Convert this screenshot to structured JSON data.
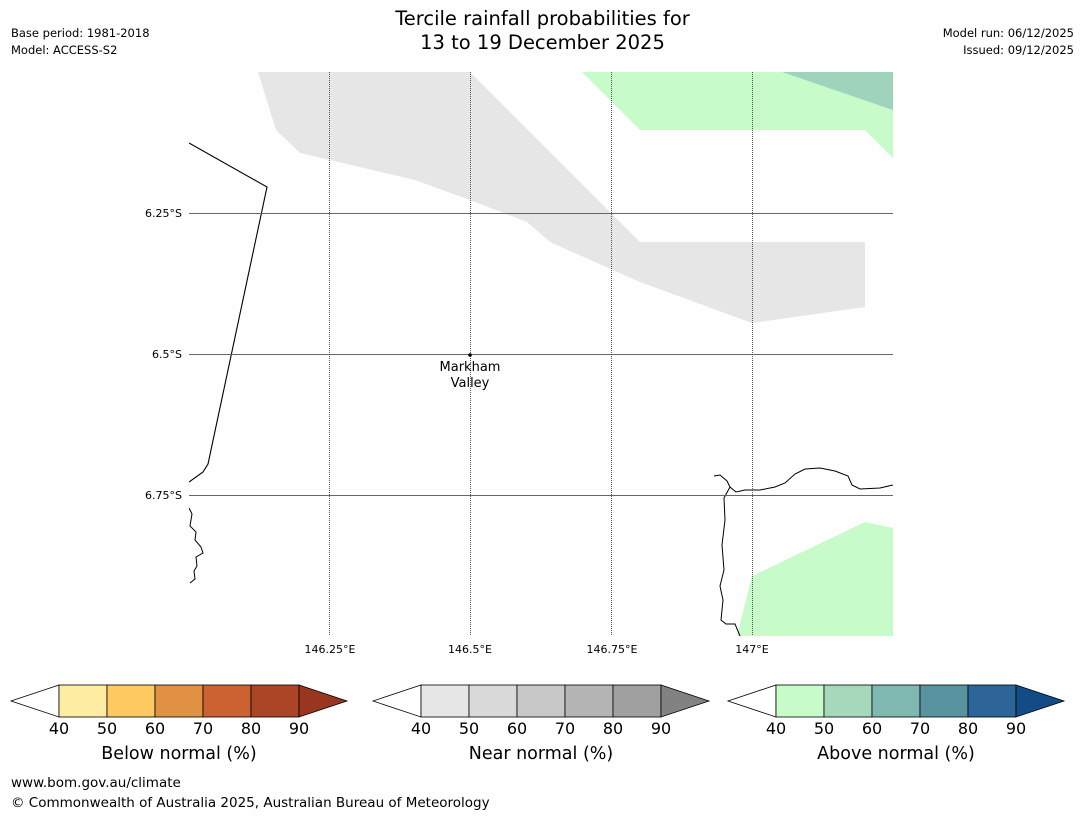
{
  "title": {
    "line1": "Tercile rainfall probabilities for",
    "line2": "13 to 19 December 2025"
  },
  "meta": {
    "base_period": "Base period: 1981-2018",
    "model": "Model: ACCESS-S2",
    "model_run": "Model run: 06/12/2025",
    "issued": "Issued: 09/12/2025"
  },
  "map": {
    "lat_labels": [
      "6.25°S",
      "6.5°S",
      "6.75°S"
    ],
    "lon_labels": [
      "146.25°E",
      "146.5°E",
      "146.75°E",
      "147°E"
    ],
    "place": {
      "name_line1": "Markham",
      "name_line2": "Valley"
    },
    "colors": {
      "near_normal_40": "#e6e6e6",
      "above_normal_40": "#c7fcca",
      "above_normal_50": "#a0d3bb",
      "gridline": "#555555",
      "coastline": "#000000"
    }
  },
  "colorbars": [
    {
      "label": "Below normal (%)",
      "ticks": [
        "40",
        "50",
        "60",
        "70",
        "80",
        "90"
      ],
      "colors": [
        "#fdeca1",
        "#fdc961",
        "#e09142",
        "#cc6232",
        "#ac4525",
        "#993620"
      ]
    },
    {
      "label": "Near normal (%)",
      "ticks": [
        "40",
        "50",
        "60",
        "70",
        "80",
        "90"
      ],
      "colors": [
        "#e6e6e6",
        "#d9d9d9",
        "#c8c8c8",
        "#b4b4b4",
        "#a0a0a0",
        "#828282"
      ]
    },
    {
      "label": "Above normal (%)",
      "ticks": [
        "40",
        "50",
        "60",
        "70",
        "80",
        "90"
      ],
      "colors": [
        "#c7fcca",
        "#a6d9bc",
        "#7fb8b0",
        "#5a93a0",
        "#2e6598",
        "#134b86"
      ]
    }
  ],
  "footer": {
    "url": "www.bom.gov.au/climate",
    "copyright": "© Commonwealth of Australia 2025, Australian Bureau of Meteorology"
  }
}
